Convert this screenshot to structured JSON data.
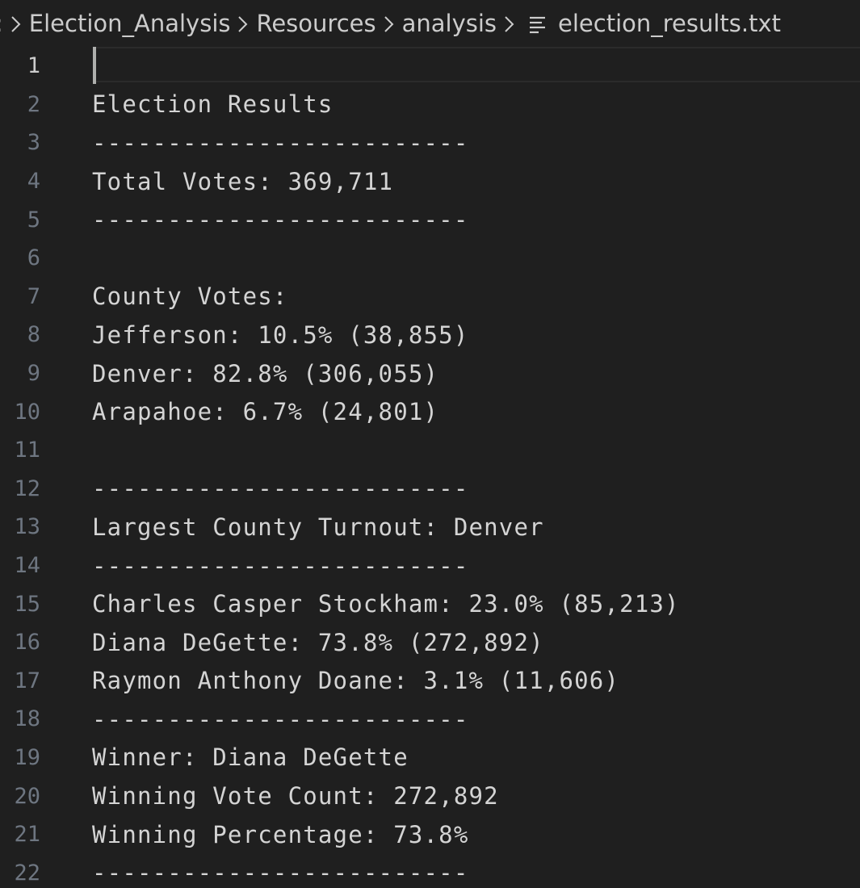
{
  "breadcrumb": {
    "lead": ":",
    "parts": [
      "Election_Analysis",
      "Resources",
      "analysis"
    ],
    "file": "election_results.txt",
    "file_icon": "text-file-lines-icon",
    "separator_icon": "chevron-right-icon"
  },
  "editor": {
    "active_line": 1,
    "lines": [
      {
        "n": "1",
        "text": ""
      },
      {
        "n": "2",
        "text": "Election Results"
      },
      {
        "n": "3",
        "text": "-------------------------"
      },
      {
        "n": "4",
        "text": "Total Votes: 369,711"
      },
      {
        "n": "5",
        "text": "-------------------------"
      },
      {
        "n": "6",
        "text": ""
      },
      {
        "n": "7",
        "text": "County Votes:"
      },
      {
        "n": "8",
        "text": "Jefferson: 10.5% (38,855)"
      },
      {
        "n": "9",
        "text": "Denver: 82.8% (306,055)"
      },
      {
        "n": "10",
        "text": "Arapahoe: 6.7% (24,801)"
      },
      {
        "n": "11",
        "text": ""
      },
      {
        "n": "12",
        "text": "-------------------------"
      },
      {
        "n": "13",
        "text": "Largest County Turnout: Denver"
      },
      {
        "n": "14",
        "text": "-------------------------"
      },
      {
        "n": "15",
        "text": "Charles Casper Stockham: 23.0% (85,213)"
      },
      {
        "n": "16",
        "text": "Diana DeGette: 73.8% (272,892)"
      },
      {
        "n": "17",
        "text": "Raymon Anthony Doane: 3.1% (11,606)"
      },
      {
        "n": "18",
        "text": "-------------------------"
      },
      {
        "n": "19",
        "text": "Winner: Diana DeGette"
      },
      {
        "n": "20",
        "text": "Winning Vote Count: 272,892"
      },
      {
        "n": "21",
        "text": "Winning Percentage: 73.8%"
      },
      {
        "n": "22",
        "text": "-------------------------"
      }
    ]
  },
  "colors": {
    "background": "#1f1f1f",
    "text": "#d4d4d4",
    "line_number": "#6e7681",
    "active_line_number": "#cccccc",
    "cursor": "#aeafad"
  }
}
